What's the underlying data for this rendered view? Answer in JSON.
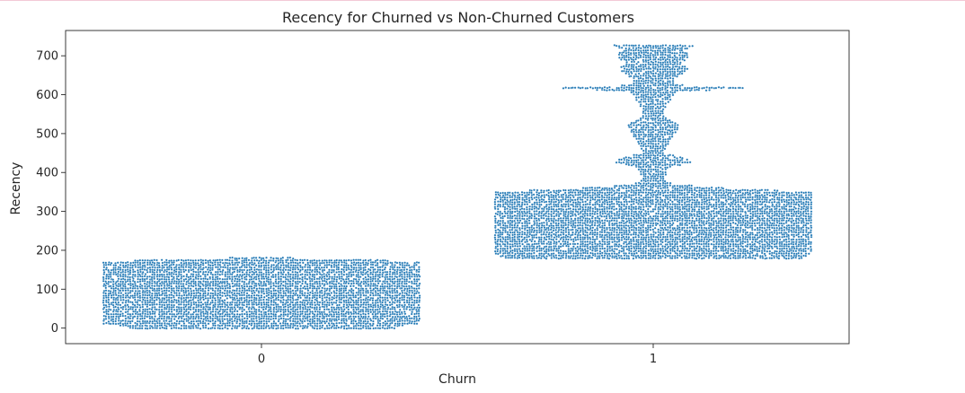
{
  "chart_data": {
    "type": "scatter",
    "title": "Recency for Churned vs Non-Churned Customers",
    "xlabel": "Churn",
    "ylabel": "Recency",
    "categories": [
      "0",
      "1"
    ],
    "yticks": [
      "0",
      "100",
      "200",
      "300",
      "400",
      "500",
      "600",
      "700"
    ],
    "ylim": [
      -40,
      765
    ],
    "grid": false,
    "legend": "none",
    "color": "#1f77b4",
    "series": [
      {
        "category": "0",
        "min": 0,
        "max": 180,
        "profile": [
          [
            0,
            0.85
          ],
          [
            5,
            0.88
          ],
          [
            10,
            1.0
          ],
          [
            20,
            1.0
          ],
          [
            30,
            1.0
          ],
          [
            45,
            1.0
          ],
          [
            60,
            1.0
          ],
          [
            80,
            1.0
          ],
          [
            100,
            1.0
          ],
          [
            120,
            1.0
          ],
          [
            140,
            1.0
          ],
          [
            160,
            1.0
          ],
          [
            170,
            1.0
          ],
          [
            175,
            0.75
          ],
          [
            180,
            0.2
          ]
        ]
      },
      {
        "category": "1",
        "min": 180,
        "max": 730,
        "profile": [
          [
            180,
            0.95
          ],
          [
            190,
            1.0
          ],
          [
            210,
            1.0
          ],
          [
            230,
            1.0
          ],
          [
            250,
            1.0
          ],
          [
            270,
            1.0
          ],
          [
            290,
            1.0
          ],
          [
            310,
            1.0
          ],
          [
            330,
            1.0
          ],
          [
            350,
            1.0
          ],
          [
            360,
            0.45
          ],
          [
            370,
            0.12
          ],
          [
            380,
            0.07
          ],
          [
            400,
            0.08
          ],
          [
            415,
            0.12
          ],
          [
            425,
            0.24
          ],
          [
            435,
            0.22
          ],
          [
            450,
            0.07
          ],
          [
            470,
            0.09
          ],
          [
            490,
            0.12
          ],
          [
            510,
            0.16
          ],
          [
            525,
            0.17
          ],
          [
            540,
            0.08
          ],
          [
            560,
            0.06
          ],
          [
            580,
            0.1
          ],
          [
            595,
            0.14
          ],
          [
            605,
            0.12
          ],
          [
            618,
            0.58
          ],
          [
            625,
            0.12
          ],
          [
            640,
            0.13
          ],
          [
            660,
            0.21
          ],
          [
            670,
            0.22
          ],
          [
            680,
            0.16
          ],
          [
            695,
            0.23
          ],
          [
            705,
            0.23
          ],
          [
            715,
            0.19
          ],
          [
            725,
            0.26
          ],
          [
            730,
            0.2
          ]
        ]
      }
    ]
  }
}
